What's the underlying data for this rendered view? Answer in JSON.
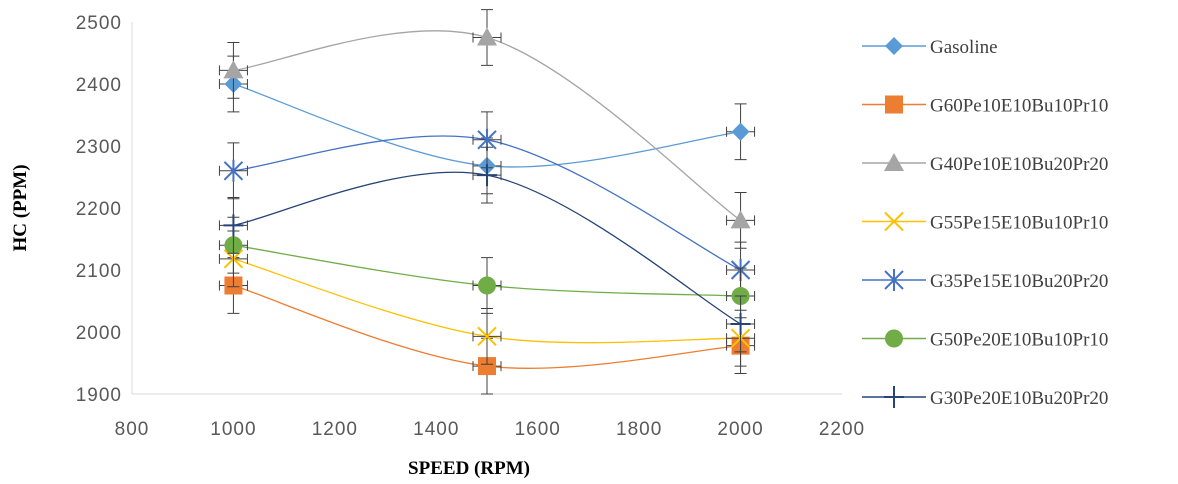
{
  "chart_data": {
    "type": "scatter",
    "title": "",
    "xlabel": "SPEED (RPM)",
    "ylabel": "HC (PPM)",
    "xlim": [
      800,
      2200
    ],
    "ylim": [
      1900,
      2500
    ],
    "xticks": [
      "800",
      "1000",
      "1200",
      "1400",
      "1600",
      "1800",
      "2000",
      "2200"
    ],
    "yticks": [
      "1900",
      "2000",
      "2100",
      "2200",
      "2300",
      "2400",
      "2500"
    ],
    "grid": false,
    "legend_position": "right",
    "x": [
      1000,
      1500,
      2000
    ],
    "error_bar": 45,
    "series": [
      {
        "name": "Gasoline",
        "values": [
          2400,
          2268,
          2323
        ],
        "color": "#5B9BD5",
        "marker": "diamond"
      },
      {
        "name": "G60Pe10E10Bu10Pr10",
        "values": [
          2075,
          1945,
          1978
        ],
        "color": "#ED7D31",
        "marker": "square"
      },
      {
        "name": "G40Pe10E10Bu20Pr20",
        "values": [
          2422,
          2475,
          2180
        ],
        "color": "#A5A5A5",
        "marker": "triangle"
      },
      {
        "name": "G55Pe15E10Bu10Pr10",
        "values": [
          2118,
          1993,
          1990
        ],
        "color": "#FFC000",
        "marker": "x"
      },
      {
        "name": "G35Pe15E10Bu20Pr20",
        "values": [
          2260,
          2310,
          2100
        ],
        "color": "#4472C4",
        "marker": "star"
      },
      {
        "name": "G50Pe20E10Bu10Pr10",
        "values": [
          2140,
          2075,
          2058
        ],
        "color": "#70AD47",
        "marker": "circle"
      },
      {
        "name": "G30Pe20E10Bu20Pr20",
        "values": [
          2172,
          2253,
          2013
        ],
        "color": "#264478",
        "marker": "plus"
      }
    ]
  }
}
